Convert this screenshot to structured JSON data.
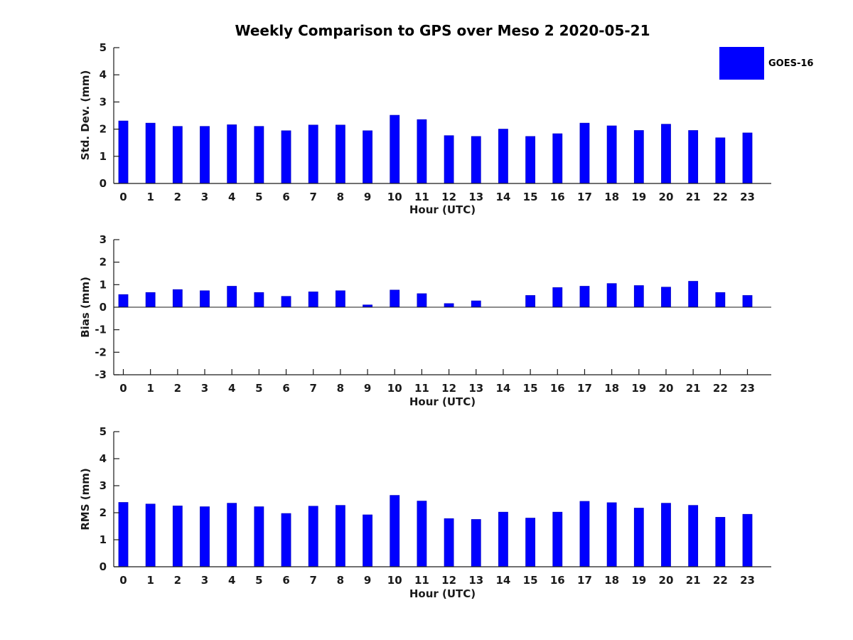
{
  "figure": {
    "title": "Weekly Comparison to GPS over Meso 2 2020-05-21",
    "legend": {
      "label": "GOES-16",
      "color": "#0000ff"
    },
    "bar_color": "#0000ff",
    "bar_edge_color": "#0000c8"
  },
  "chart_data": [
    {
      "type": "bar",
      "series_name": "GOES-16",
      "ylabel": "Std. Dev. (mm)",
      "xlabel": "Hour (UTC)",
      "categories": [
        "0",
        "1",
        "2",
        "3",
        "4",
        "5",
        "6",
        "7",
        "8",
        "9",
        "10",
        "11",
        "12",
        "13",
        "14",
        "15",
        "16",
        "17",
        "18",
        "19",
        "20",
        "21",
        "22",
        "23"
      ],
      "values": [
        2.3,
        2.22,
        2.1,
        2.1,
        2.16,
        2.1,
        1.94,
        2.15,
        2.15,
        1.94,
        2.51,
        2.35,
        1.76,
        1.73,
        2.0,
        1.73,
        1.83,
        2.22,
        2.12,
        1.95,
        2.18,
        1.95,
        1.68,
        1.86
      ],
      "ylim": [
        0,
        5
      ],
      "yticks": [
        0,
        1,
        2,
        3,
        4,
        5
      ],
      "grid": false,
      "legend_position": "upper-right-outside"
    },
    {
      "type": "bar",
      "series_name": "GOES-16",
      "ylabel": "Bias (mm)",
      "xlabel": "Hour (UTC)",
      "categories": [
        "0",
        "1",
        "2",
        "3",
        "4",
        "5",
        "6",
        "7",
        "8",
        "9",
        "10",
        "11",
        "12",
        "13",
        "14",
        "15",
        "16",
        "17",
        "18",
        "19",
        "20",
        "21",
        "22",
        "23"
      ],
      "values": [
        0.56,
        0.65,
        0.78,
        0.73,
        0.93,
        0.65,
        0.48,
        0.68,
        0.73,
        0.1,
        0.76,
        0.6,
        0.16,
        0.28,
        0.0,
        0.52,
        0.87,
        0.93,
        1.05,
        0.96,
        0.89,
        1.15,
        0.65,
        0.52
      ],
      "ylim": [
        -3,
        3
      ],
      "yticks": [
        -3,
        -2,
        -1,
        0,
        1,
        2,
        3
      ],
      "grid": false,
      "zero_line": true
    },
    {
      "type": "bar",
      "series_name": "GOES-16",
      "ylabel": "RMS (mm)",
      "xlabel": "Hour (UTC)",
      "categories": [
        "0",
        "1",
        "2",
        "3",
        "4",
        "5",
        "6",
        "7",
        "8",
        "9",
        "10",
        "11",
        "12",
        "13",
        "14",
        "15",
        "16",
        "17",
        "18",
        "19",
        "20",
        "21",
        "22",
        "23"
      ],
      "values": [
        2.38,
        2.32,
        2.25,
        2.22,
        2.35,
        2.22,
        1.97,
        2.24,
        2.27,
        1.92,
        2.64,
        2.43,
        1.78,
        1.75,
        2.02,
        1.8,
        2.02,
        2.42,
        2.37,
        2.17,
        2.35,
        2.27,
        1.83,
        1.94
      ],
      "ylim": [
        0,
        5
      ],
      "yticks": [
        0,
        1,
        2,
        3,
        4,
        5
      ],
      "grid": false
    }
  ]
}
